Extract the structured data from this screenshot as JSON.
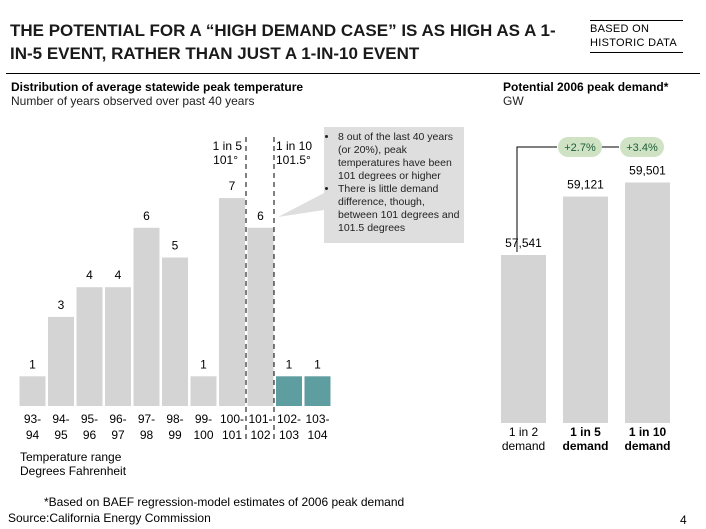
{
  "header": {
    "title": "THE POTENTIAL FOR A “HIGH DEMAND CASE” IS AS HIGH AS A 1-IN-5 EVENT, RATHER THAN JUST A 1-IN-10 EVENT",
    "badge_line1": "BASED ON",
    "badge_line2": "HISTORIC DATA"
  },
  "left_panel": {
    "title": "Distribution of average statewide peak temperature",
    "subtitle": "Number of years observed over past 40 years",
    "xaxis_title": "Temperature range",
    "xaxis_subtitle": "Degrees Fahrenheit",
    "marker_1in5_label": "1 in 5",
    "marker_1in5_value": "101°",
    "marker_1in10_label": "1 in 10",
    "marker_1in10_value": "101.5°",
    "callout_bullets": [
      "8 out of the last 40 years (or 20%), peak temperatures have been 101 degrees or higher",
      "There is little demand difference, though, between 101 degrees and 101.5 degrees"
    ]
  },
  "right_panel": {
    "title": "Potential 2006 peak demand*",
    "subtitle": "GW",
    "increase_1": "+2.7%",
    "increase_2": "+3.4%"
  },
  "footer": {
    "note": "*Based on BAEF regression-model estimates of 2006 peak demand",
    "source": "Source:California Energy Commission",
    "page_number": "4"
  },
  "colors": {
    "bar": "#d4d4d4",
    "bar_highlight": "#5f9ea0",
    "bubble": "#dedede",
    "badge_fill": "#cfe3c4",
    "badge_text": "#1a5c3a"
  },
  "chart_data": [
    {
      "type": "bar",
      "title": "Distribution of average statewide peak temperature",
      "xlabel": "Temperature range",
      "ylabel": "Number of years observed over past 40 years",
      "categories_top": [
        "93-",
        "94-",
        "95-",
        "96-",
        "97-",
        "98-",
        "99-",
        "100-",
        "101-",
        "102-",
        "103-"
      ],
      "categories_bottom": [
        "94",
        "95",
        "96",
        "97",
        "98",
        "99",
        "100",
        "101",
        "102",
        "103",
        "104"
      ],
      "values": [
        1,
        3,
        4,
        4,
        6,
        5,
        1,
        7,
        6,
        1,
        1
      ],
      "highlight": [
        false,
        false,
        false,
        false,
        false,
        false,
        false,
        false,
        false,
        true,
        true
      ],
      "ylim": [
        0,
        8
      ]
    },
    {
      "type": "bar",
      "title": "Potential 2006 peak demand*",
      "ylabel": "GW",
      "categories_line1": [
        "1 in 2",
        "1 in 5",
        "1 in 10"
      ],
      "categories_line2": [
        "demand",
        "demand",
        "demand"
      ],
      "bold": [
        false,
        true,
        true
      ],
      "values": [
        57541,
        59121,
        59501
      ],
      "labels": [
        "57,541",
        "59,121",
        "59,501"
      ]
    }
  ]
}
